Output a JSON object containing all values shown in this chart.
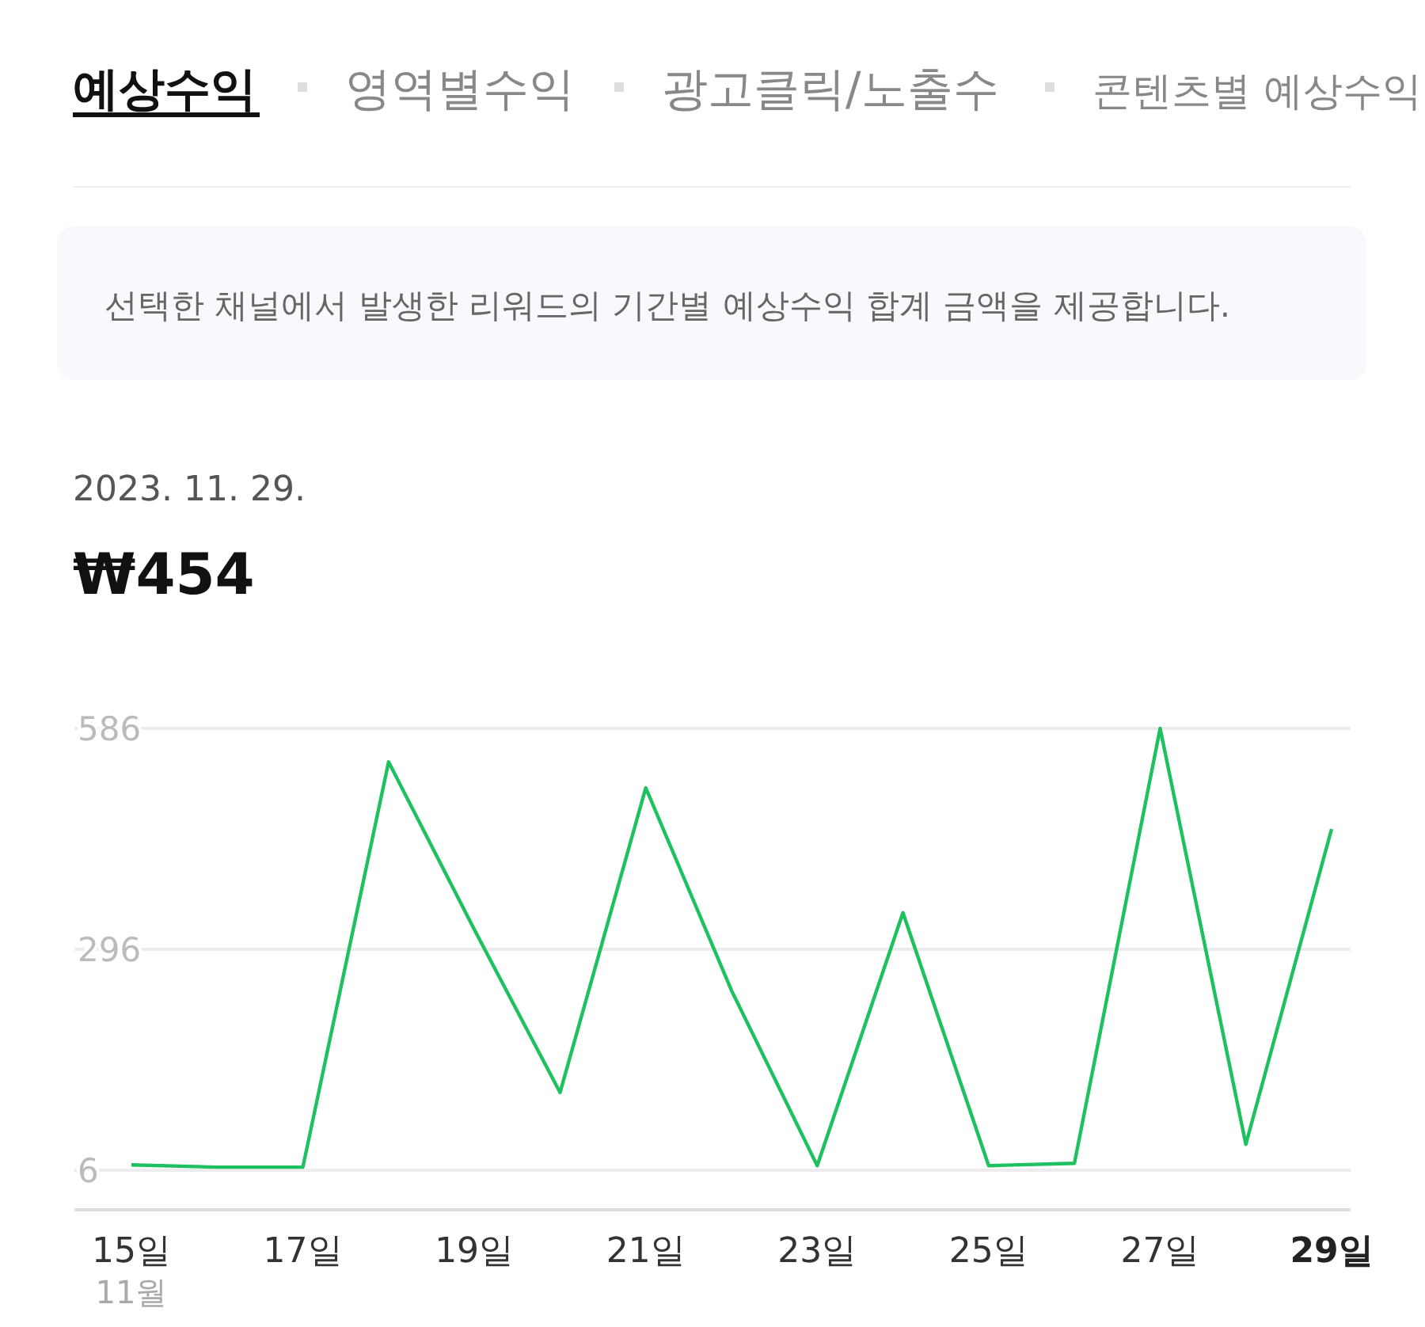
{
  "chart_data": {
    "type": "line",
    "title": "₩454",
    "subtitle": "2023. 11. 29.",
    "annotations": [
      "예상수익",
      "영역별수익",
      "광고클릭/노출수",
      "콘텐츠별 예상수익",
      "선택한 채널에서 발생한 리워드의 기간별 예상수익 합계 금액을 제공합니다.",
      "11월"
    ],
    "categories": [
      "15일",
      null,
      "17일",
      null,
      "19일",
      null,
      "21일",
      null,
      "23일",
      null,
      "25일",
      null,
      "27일",
      null,
      "29일"
    ],
    "series": [
      {
        "color": "#1ec15f",
        "values": [
          13,
          10,
          10,
          542,
          322,
          108,
          508,
          242,
          12,
          344,
          12,
          15,
          586,
          40,
          454
        ]
      }
    ],
    "ylim": [
      -46,
      586
    ],
    "yticks": [
      6,
      296,
      586
    ],
    "grid": "y",
    "marker": "none",
    "line_style": "solid"
  }
}
